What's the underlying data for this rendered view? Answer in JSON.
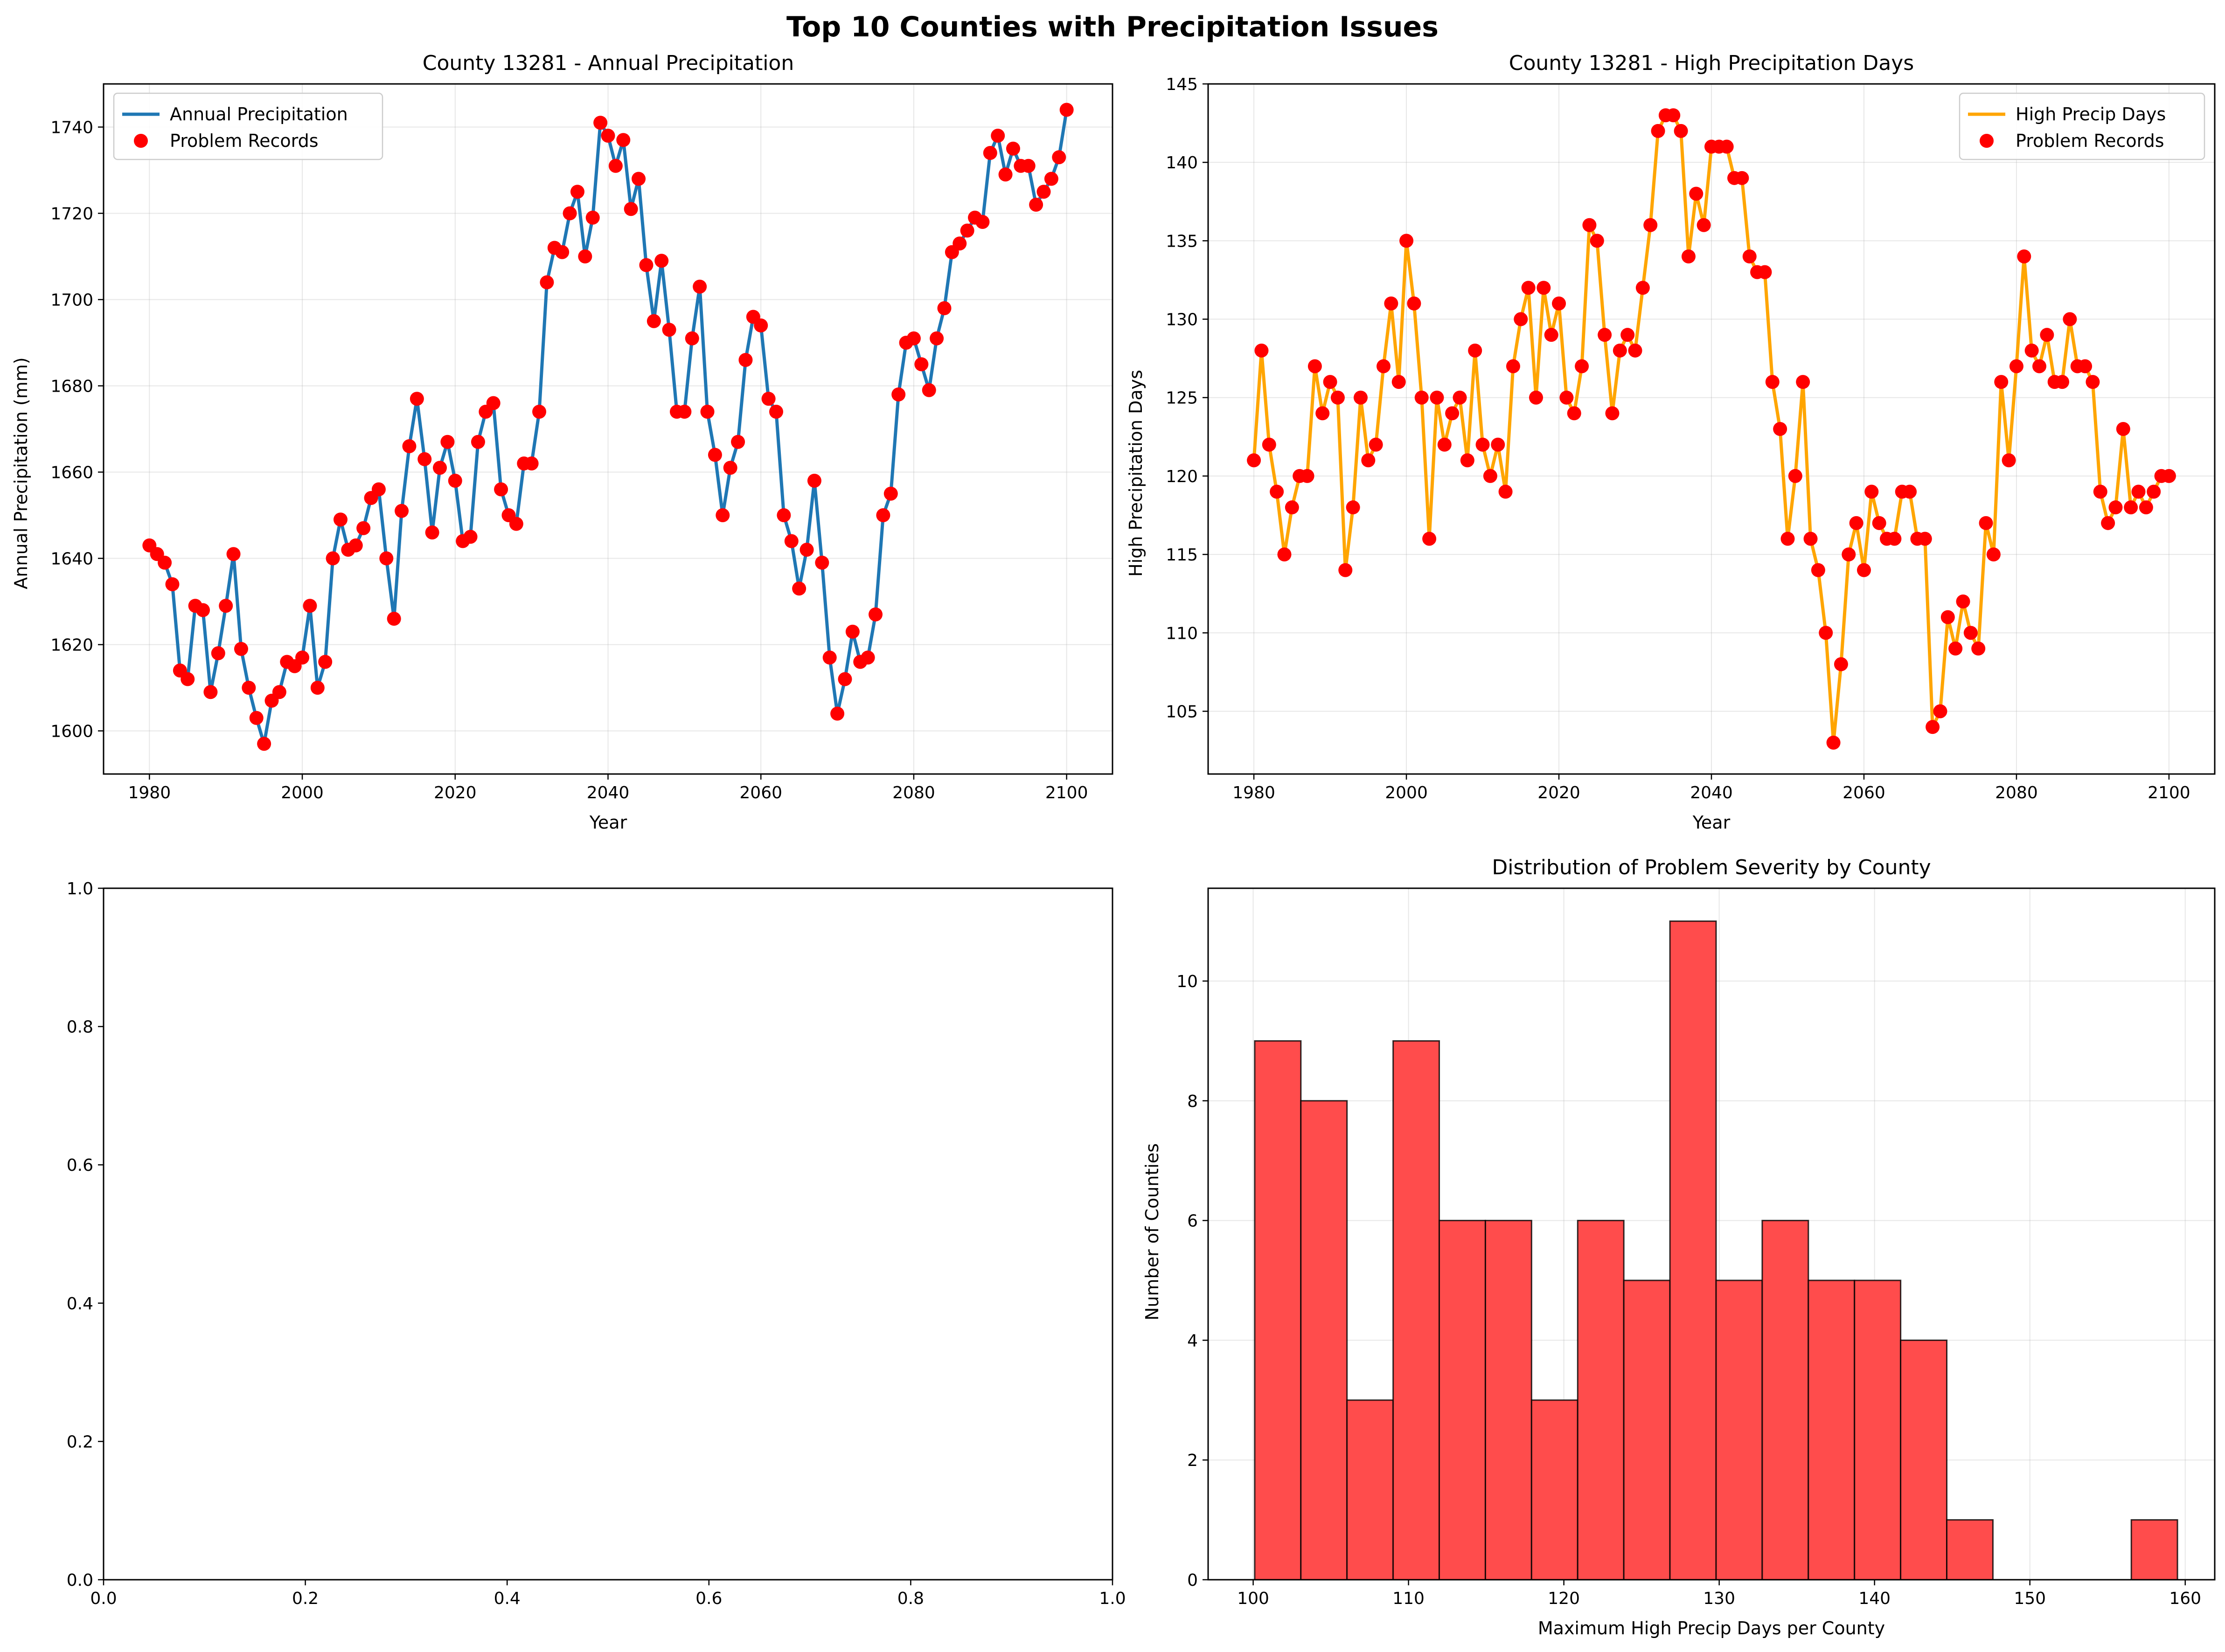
{
  "figure": {
    "title": "Top 10 Counties with Precipitation Issues"
  },
  "colors": {
    "blue": "#1f77b4",
    "orange": "#ffa500",
    "red": "#ff0000",
    "hist": "#ff4c4c"
  },
  "chart_data": [
    {
      "id": "annual",
      "type": "line",
      "title": "County 13281 - Annual Precipitation",
      "xlabel": "Year",
      "ylabel": "Annual Precipitation (mm)",
      "xlim": [
        1974,
        2106
      ],
      "ylim": [
        1590,
        1750
      ],
      "xticks": [
        1980,
        2000,
        2020,
        2040,
        2060,
        2080,
        2100
      ],
      "yticks": [
        1600,
        1620,
        1640,
        1660,
        1680,
        1700,
        1720,
        1740
      ],
      "grid": true,
      "legend": "top-left",
      "series": [
        {
          "name": "Annual Precipitation",
          "kind": "line",
          "color": "#1f77b4"
        },
        {
          "name": "Problem Records",
          "kind": "scatter",
          "color": "#ff0000"
        }
      ],
      "x_start": 1980,
      "values": [
        1643,
        1641,
        1639,
        1634,
        1614,
        1612,
        1629,
        1628,
        1609,
        1618,
        1629,
        1641,
        1619,
        1610,
        1603,
        1597,
        1607,
        1609,
        1616,
        1615,
        1617,
        1629,
        1610,
        1616,
        1640,
        1649,
        1642,
        1643,
        1647,
        1654,
        1656,
        1640,
        1626,
        1651,
        1666,
        1677,
        1663,
        1646,
        1661,
        1667,
        1658,
        1644,
        1645,
        1667,
        1674,
        1676,
        1656,
        1650,
        1648,
        1662,
        1662,
        1674,
        1704,
        1712,
        1711,
        1720,
        1725,
        1710,
        1719,
        1741,
        1738,
        1731,
        1737,
        1721,
        1728,
        1708,
        1695,
        1709,
        1693,
        1674,
        1674,
        1691,
        1703,
        1674,
        1664,
        1650,
        1661,
        1667,
        1686,
        1696,
        1694,
        1677,
        1674,
        1650,
        1644,
        1633,
        1642,
        1658,
        1639,
        1617,
        1604,
        1612,
        1623,
        1616,
        1617,
        1627,
        1650,
        1655,
        1678,
        1690,
        1691,
        1685,
        1679,
        1691,
        1698,
        1711,
        1713,
        1716,
        1719,
        1718,
        1734,
        1738,
        1729,
        1735,
        1731,
        1731,
        1722,
        1725,
        1728,
        1733,
        1744
      ]
    },
    {
      "id": "highdays",
      "type": "line",
      "title": "County 13281 - High Precipitation Days",
      "xlabel": "Year",
      "ylabel": "High Precipitation Days",
      "xlim": [
        1974,
        2106
      ],
      "ylim": [
        101,
        145
      ],
      "xticks": [
        1980,
        2000,
        2020,
        2040,
        2060,
        2080,
        2100
      ],
      "yticks": [
        105,
        110,
        115,
        120,
        125,
        130,
        135,
        140,
        145
      ],
      "grid": true,
      "legend": "top-right",
      "series": [
        {
          "name": "High Precip Days",
          "kind": "line",
          "color": "#ffa500"
        },
        {
          "name": "Problem Records",
          "kind": "scatter",
          "color": "#ff0000"
        }
      ],
      "x_start": 1980,
      "values": [
        121,
        128,
        122,
        119,
        115,
        118,
        120,
        120,
        127,
        124,
        126,
        125,
        114,
        118,
        125,
        121,
        122,
        127,
        131,
        126,
        135,
        131,
        125,
        116,
        125,
        122,
        124,
        125,
        121,
        128,
        122,
        120,
        122,
        119,
        127,
        130,
        132,
        125,
        132,
        129,
        131,
        125,
        124,
        127,
        136,
        135,
        129,
        124,
        128,
        129,
        128,
        132,
        136,
        142,
        143,
        143,
        142,
        134,
        138,
        136,
        141,
        141,
        141,
        139,
        139,
        134,
        133,
        133,
        126,
        123,
        116,
        120,
        126,
        116,
        114,
        110,
        103,
        108,
        115,
        117,
        114,
        119,
        117,
        116,
        116,
        119,
        119,
        116,
        116,
        104,
        105,
        111,
        109,
        112,
        110,
        109,
        117,
        115,
        126,
        121,
        127,
        134,
        128,
        127,
        129,
        126,
        126,
        130,
        127,
        127,
        126,
        119,
        117,
        118,
        123,
        118,
        119,
        118,
        119,
        120,
        120
      ]
    },
    {
      "id": "empty",
      "type": "line",
      "xlim": [
        0,
        1
      ],
      "ylim": [
        0,
        1
      ],
      "xticks": [
        0.0,
        0.2,
        0.4,
        0.6,
        0.8,
        1.0
      ],
      "yticks": [
        0.0,
        0.2,
        0.4,
        0.6,
        0.8,
        1.0
      ],
      "grid": false,
      "series": []
    },
    {
      "id": "hist",
      "type": "bar",
      "title": "Distribution of Problem Severity by County",
      "xlabel": "Maximum High Precip Days per County",
      "ylabel": "Number of Counties",
      "xlim": [
        97.1,
        161.9
      ],
      "ylim": [
        0,
        11.55
      ],
      "xticks": [
        100,
        110,
        120,
        130,
        140,
        150,
        160
      ],
      "yticks": [
        0,
        2,
        4,
        6,
        8,
        10
      ],
      "grid": true,
      "bin_start": 100.1,
      "bin_width": 2.97,
      "counts": [
        9,
        8,
        3,
        9,
        6,
        6,
        3,
        6,
        5,
        11,
        5,
        6,
        5,
        5,
        4,
        1,
        0,
        0,
        0,
        1
      ],
      "color": "#ff4c4c"
    }
  ]
}
